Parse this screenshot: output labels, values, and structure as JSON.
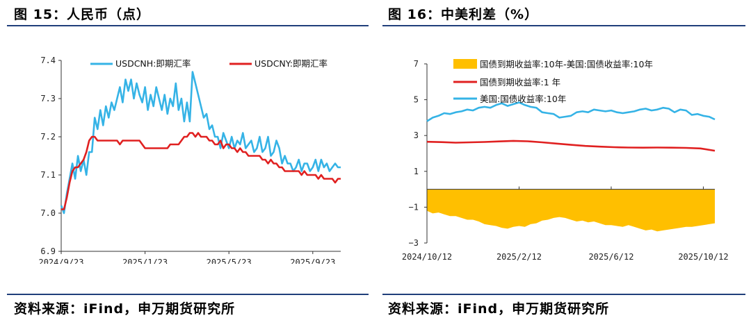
{
  "left": {
    "title": "图 15：人民币（点）",
    "source": "资料来源：iFind，申万期货研究所"
  },
  "right": {
    "title": "图 16：中美利差（%）",
    "source": "资料来源：iFind，申万期货研究所"
  },
  "chart_data": [
    {
      "type": "line",
      "title": "人民币（点）",
      "ylim": [
        6.9,
        7.4
      ],
      "yticks": [
        "7.4",
        "7.3",
        "7.2",
        "7.1",
        "7.0",
        "6.9"
      ],
      "ytick_values": [
        7.4,
        7.3,
        7.2,
        7.1,
        7.0,
        6.9
      ],
      "xlim": [
        0,
        1.0
      ],
      "xticks": [
        "2024/9/23",
        "2025/1/23",
        "2025/5/23",
        "2025/9/23"
      ],
      "xtick_values": [
        0,
        0.3,
        0.6,
        0.9
      ],
      "legend_position": "top",
      "series": [
        {
          "name": "USDCNH:即期汇率",
          "color": "#35b3e6",
          "x": [
            0.0,
            0.01,
            0.02,
            0.03,
            0.04,
            0.05,
            0.06,
            0.07,
            0.08,
            0.09,
            0.1,
            0.11,
            0.12,
            0.13,
            0.14,
            0.15,
            0.16,
            0.17,
            0.18,
            0.19,
            0.2,
            0.21,
            0.22,
            0.23,
            0.24,
            0.25,
            0.26,
            0.27,
            0.28,
            0.29,
            0.3,
            0.31,
            0.32,
            0.33,
            0.34,
            0.35,
            0.36,
            0.37,
            0.38,
            0.39,
            0.4,
            0.41,
            0.42,
            0.43,
            0.44,
            0.45,
            0.46,
            0.47,
            0.48,
            0.49,
            0.5,
            0.51,
            0.52,
            0.53,
            0.54,
            0.55,
            0.56,
            0.57,
            0.58,
            0.59,
            0.6,
            0.61,
            0.62,
            0.63,
            0.64,
            0.65,
            0.66,
            0.67,
            0.68,
            0.69,
            0.7,
            0.71,
            0.72,
            0.73,
            0.74,
            0.75,
            0.76,
            0.77,
            0.78,
            0.79,
            0.8,
            0.81,
            0.82,
            0.83,
            0.84,
            0.85,
            0.86,
            0.87,
            0.88,
            0.89,
            0.9,
            0.91,
            0.92,
            0.93,
            0.94,
            0.95,
            0.96,
            0.97,
            0.98,
            0.99,
            1.0
          ],
          "values": [
            7.02,
            7.0,
            7.05,
            7.09,
            7.13,
            7.09,
            7.15,
            7.11,
            7.14,
            7.1,
            7.16,
            7.16,
            7.25,
            7.22,
            7.27,
            7.23,
            7.28,
            7.25,
            7.29,
            7.27,
            7.3,
            7.33,
            7.29,
            7.35,
            7.32,
            7.35,
            7.3,
            7.34,
            7.31,
            7.29,
            7.33,
            7.27,
            7.31,
            7.28,
            7.33,
            7.3,
            7.27,
            7.31,
            7.26,
            7.3,
            7.28,
            7.34,
            7.27,
            7.3,
            7.24,
            7.29,
            7.24,
            7.37,
            7.34,
            7.31,
            7.28,
            7.25,
            7.26,
            7.22,
            7.23,
            7.2,
            7.2,
            7.17,
            7.21,
            7.19,
            7.17,
            7.2,
            7.17,
            7.19,
            7.18,
            7.21,
            7.17,
            7.18,
            7.19,
            7.16,
            7.17,
            7.2,
            7.16,
            7.17,
            7.2,
            7.15,
            7.16,
            7.19,
            7.17,
            7.13,
            7.15,
            7.13,
            7.13,
            7.11,
            7.12,
            7.14,
            7.11,
            7.13,
            7.13,
            7.11,
            7.12,
            7.14,
            7.11,
            7.14,
            7.12,
            7.13,
            7.11,
            7.12,
            7.13,
            7.12,
            7.12
          ]
        },
        {
          "name": "USDCNY:即期汇率",
          "color": "#e02020",
          "x": [
            0.0,
            0.01,
            0.02,
            0.03,
            0.04,
            0.05,
            0.06,
            0.07,
            0.08,
            0.09,
            0.1,
            0.11,
            0.12,
            0.13,
            0.14,
            0.15,
            0.16,
            0.17,
            0.18,
            0.19,
            0.2,
            0.21,
            0.22,
            0.23,
            0.24,
            0.25,
            0.26,
            0.27,
            0.28,
            0.29,
            0.3,
            0.31,
            0.32,
            0.33,
            0.34,
            0.35,
            0.36,
            0.37,
            0.38,
            0.39,
            0.4,
            0.41,
            0.42,
            0.43,
            0.44,
            0.45,
            0.46,
            0.47,
            0.48,
            0.49,
            0.5,
            0.51,
            0.52,
            0.53,
            0.54,
            0.55,
            0.56,
            0.57,
            0.58,
            0.59,
            0.6,
            0.61,
            0.62,
            0.63,
            0.64,
            0.65,
            0.66,
            0.67,
            0.68,
            0.69,
            0.7,
            0.71,
            0.72,
            0.73,
            0.74,
            0.75,
            0.76,
            0.77,
            0.78,
            0.79,
            0.8,
            0.81,
            0.82,
            0.83,
            0.84,
            0.85,
            0.86,
            0.87,
            0.88,
            0.89,
            0.9,
            0.91,
            0.92,
            0.93,
            0.94,
            0.95,
            0.96,
            0.97,
            0.98,
            0.99,
            1.0
          ],
          "values": [
            7.01,
            7.01,
            7.04,
            7.08,
            7.11,
            7.12,
            7.12,
            7.13,
            7.14,
            7.16,
            7.19,
            7.2,
            7.2,
            7.19,
            7.19,
            7.19,
            7.19,
            7.19,
            7.19,
            7.19,
            7.19,
            7.18,
            7.19,
            7.19,
            7.19,
            7.19,
            7.19,
            7.19,
            7.19,
            7.18,
            7.17,
            7.17,
            7.17,
            7.17,
            7.17,
            7.17,
            7.17,
            7.17,
            7.17,
            7.18,
            7.18,
            7.18,
            7.18,
            7.19,
            7.2,
            7.2,
            7.21,
            7.21,
            7.2,
            7.21,
            7.2,
            7.2,
            7.2,
            7.19,
            7.19,
            7.18,
            7.18,
            7.19,
            7.17,
            7.18,
            7.18,
            7.17,
            7.17,
            7.16,
            7.17,
            7.16,
            7.16,
            7.15,
            7.15,
            7.15,
            7.15,
            7.15,
            7.14,
            7.14,
            7.13,
            7.14,
            7.13,
            7.13,
            7.12,
            7.12,
            7.11,
            7.11,
            7.11,
            7.11,
            7.11,
            7.11,
            7.1,
            7.11,
            7.1,
            7.1,
            7.1,
            7.1,
            7.09,
            7.1,
            7.09,
            7.09,
            7.09,
            7.09,
            7.08,
            7.09,
            7.09
          ]
        }
      ]
    },
    {
      "type": "line",
      "title": "中美利差（%）",
      "ylim": [
        -3,
        7
      ],
      "yticks": [
        "7",
        "5",
        "3",
        "1",
        "−1",
        "−3"
      ],
      "ytick_values": [
        7,
        5,
        3,
        1,
        -1,
        -3
      ],
      "xlim": [
        0,
        1.0
      ],
      "xticks": [
        "2024/10/12",
        "2025/2/12",
        "2025/6/12",
        "2025/10/12"
      ],
      "xtick_values": [
        0,
        0.32,
        0.64,
        0.96
      ],
      "legend_position": "top-left",
      "series": [
        {
          "name": "国债到期收益率:10年-美国:国债收益率:10年",
          "kind": "area",
          "color": "#ffbf00",
          "x": [
            0.0,
            0.02,
            0.04,
            0.06,
            0.08,
            0.1,
            0.12,
            0.14,
            0.16,
            0.18,
            0.2,
            0.22,
            0.24,
            0.26,
            0.28,
            0.3,
            0.32,
            0.34,
            0.36,
            0.38,
            0.4,
            0.42,
            0.44,
            0.46,
            0.48,
            0.5,
            0.52,
            0.54,
            0.56,
            0.58,
            0.6,
            0.62,
            0.64,
            0.66,
            0.68,
            0.7,
            0.72,
            0.74,
            0.76,
            0.78,
            0.8,
            0.82,
            0.84,
            0.86,
            0.88,
            0.9,
            0.92,
            0.94,
            0.96,
            0.98,
            1.0
          ],
          "values": [
            -1.2,
            -1.35,
            -1.3,
            -1.4,
            -1.5,
            -1.5,
            -1.6,
            -1.7,
            -1.7,
            -1.8,
            -1.95,
            -2.0,
            -2.05,
            -2.15,
            -2.2,
            -2.1,
            -2.05,
            -2.1,
            -1.95,
            -1.9,
            -1.75,
            -1.7,
            -1.6,
            -1.55,
            -1.6,
            -1.7,
            -1.8,
            -1.75,
            -1.85,
            -1.8,
            -1.9,
            -2.0,
            -2.0,
            -2.05,
            -2.1,
            -2.0,
            -2.1,
            -2.2,
            -2.3,
            -2.25,
            -2.35,
            -2.3,
            -2.25,
            -2.2,
            -2.15,
            -2.1,
            -2.1,
            -2.05,
            -2.0,
            -1.95,
            -1.9
          ]
        },
        {
          "name": "国债到期收益率:1 年",
          "kind": "line",
          "color": "#e02020",
          "x": [
            0.0,
            0.05,
            0.1,
            0.15,
            0.2,
            0.25,
            0.3,
            0.35,
            0.4,
            0.45,
            0.5,
            0.55,
            0.6,
            0.65,
            0.7,
            0.75,
            0.8,
            0.85,
            0.9,
            0.95,
            1.0
          ],
          "values": [
            2.65,
            2.63,
            2.6,
            2.62,
            2.64,
            2.67,
            2.7,
            2.68,
            2.62,
            2.55,
            2.48,
            2.42,
            2.38,
            2.35,
            2.33,
            2.32,
            2.33,
            2.32,
            2.31,
            2.28,
            2.15
          ]
        },
        {
          "name": "美国:国债收益率:10年",
          "kind": "line",
          "color": "#35b3e6",
          "x": [
            0.0,
            0.02,
            0.04,
            0.06,
            0.08,
            0.1,
            0.12,
            0.14,
            0.16,
            0.18,
            0.2,
            0.22,
            0.24,
            0.26,
            0.28,
            0.3,
            0.32,
            0.34,
            0.36,
            0.38,
            0.4,
            0.42,
            0.44,
            0.46,
            0.48,
            0.5,
            0.52,
            0.54,
            0.56,
            0.58,
            0.6,
            0.62,
            0.64,
            0.66,
            0.68,
            0.7,
            0.72,
            0.74,
            0.76,
            0.78,
            0.8,
            0.82,
            0.84,
            0.86,
            0.88,
            0.9,
            0.92,
            0.94,
            0.96,
            0.98,
            1.0
          ],
          "values": [
            3.8,
            4.0,
            4.1,
            4.25,
            4.2,
            4.3,
            4.35,
            4.45,
            4.4,
            4.55,
            4.6,
            4.55,
            4.7,
            4.8,
            4.65,
            4.75,
            4.85,
            4.7,
            4.6,
            4.55,
            4.3,
            4.25,
            4.2,
            4.0,
            4.05,
            4.1,
            4.3,
            4.35,
            4.3,
            4.45,
            4.4,
            4.35,
            4.4,
            4.3,
            4.25,
            4.3,
            4.35,
            4.45,
            4.5,
            4.4,
            4.45,
            4.55,
            4.5,
            4.3,
            4.45,
            4.4,
            4.15,
            4.2,
            4.1,
            4.05,
            3.9
          ]
        }
      ]
    }
  ]
}
